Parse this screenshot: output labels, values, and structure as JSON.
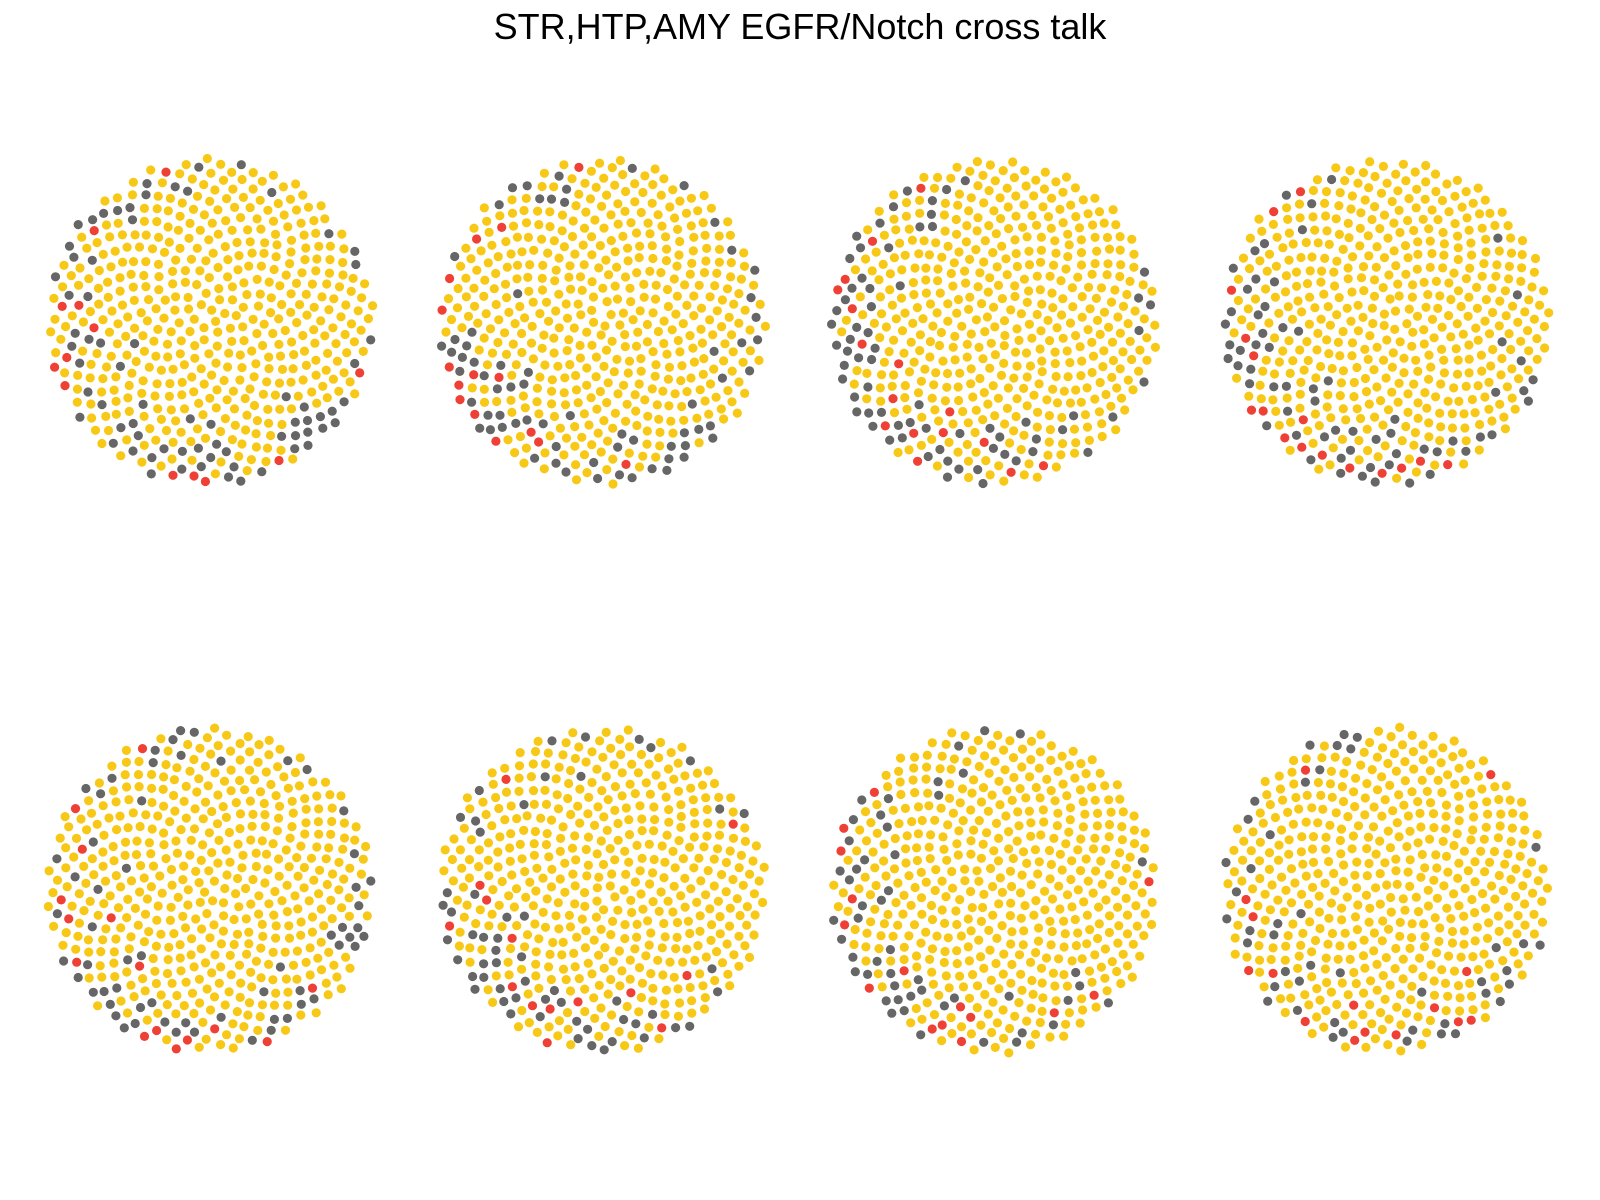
{
  "chart_data": {
    "type": "scatter",
    "title": "STR,HTP,AMY EGFR/Notch cross talk",
    "layout": "circle-packed network nodes",
    "grid": false,
    "legend": "none",
    "colors": {
      "yellow": "#F7C815",
      "gray": "#666666",
      "red": "#EE4035"
    },
    "panels": [
      {
        "row": 1,
        "col": 1,
        "counts": {
          "yellow": 420,
          "gray": 70,
          "red": 13
        }
      },
      {
        "row": 1,
        "col": 2,
        "counts": {
          "yellow": 425,
          "gray": 68,
          "red": 15
        }
      },
      {
        "row": 1,
        "col": 3,
        "counts": {
          "yellow": 428,
          "gray": 68,
          "red": 16
        }
      },
      {
        "row": 1,
        "col": 4,
        "counts": {
          "yellow": 428,
          "gray": 64,
          "red": 16
        }
      },
      {
        "row": 2,
        "col": 1,
        "counts": {
          "yellow": 434,
          "gray": 60,
          "red": 15
        }
      },
      {
        "row": 2,
        "col": 2,
        "counts": {
          "yellow": 440,
          "gray": 56,
          "red": 14
        }
      },
      {
        "row": 2,
        "col": 3,
        "counts": {
          "yellow": 448,
          "gray": 50,
          "red": 15
        }
      },
      {
        "row": 2,
        "col": 4,
        "counts": {
          "yellow": 450,
          "gray": 44,
          "red": 15
        }
      }
    ]
  }
}
